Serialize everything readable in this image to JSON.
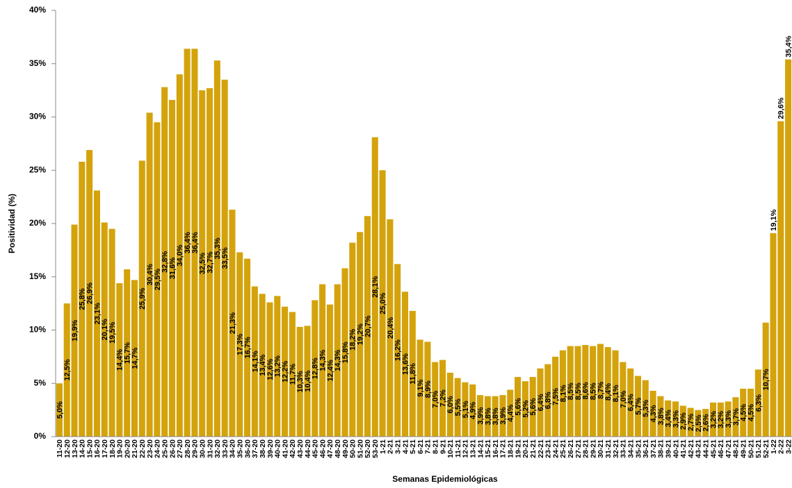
{
  "chart_data": {
    "type": "bar",
    "x_label": "Semanas Epidemiológicas",
    "y_label": "Positividad (%)",
    "color": "#d4a30c",
    "ylim": [
      0,
      40
    ],
    "yticks": [
      {
        "value": 0,
        "label": "0%"
      },
      {
        "value": 5,
        "label": "5%"
      },
      {
        "value": 10,
        "label": "10%"
      },
      {
        "value": 15,
        "label": "15%"
      },
      {
        "value": 20,
        "label": "20%"
      },
      {
        "value": 25,
        "label": "25%"
      },
      {
        "value": 30,
        "label": "30%"
      },
      {
        "value": 35,
        "label": "35%"
      },
      {
        "value": 40,
        "label": "40%"
      }
    ],
    "categories": [
      "11-20",
      "12-20",
      "13-20",
      "14-20",
      "15-20",
      "16-20",
      "17-20",
      "18-20",
      "19-20",
      "20-20",
      "21-20",
      "22-20",
      "23-20",
      "24-20",
      "25-20",
      "26-20",
      "27-20",
      "28-20",
      "29-20",
      "30-20",
      "31-20",
      "32-20",
      "33-20",
      "34-20",
      "35-20",
      "36-20",
      "37-20",
      "38-20",
      "39-20",
      "40-20",
      "41-20",
      "42-20",
      "43-20",
      "44-20",
      "45-20",
      "46-20",
      "47-20",
      "48-20",
      "49-20",
      "50-20",
      "51-20",
      "52-20",
      "53-20",
      "1-21",
      "2-21",
      "3-21",
      "4-21",
      "5-21",
      "6-21",
      "7-21",
      "8-21",
      "9-21",
      "10-21",
      "11-21",
      "12-21",
      "13-21",
      "14-21",
      "15-21",
      "16-21",
      "17-21",
      "18-21",
      "19-21",
      "20-21",
      "21-21",
      "22-21",
      "23-21",
      "24-21",
      "25-21",
      "26-21",
      "27-21",
      "28-21",
      "29-21",
      "30-21",
      "31-21",
      "32-21",
      "33-21",
      "34-21",
      "35-21",
      "36-21",
      "37-21",
      "38-21",
      "39-21",
      "40-21",
      "41-21",
      "42-21",
      "43-21",
      "44-21",
      "45-21",
      "46-21",
      "47-21",
      "48-21",
      "49-21",
      "50-21",
      "51-21",
      "52-21",
      "1-22",
      "2-22",
      "3-22"
    ],
    "values": [
      5.0,
      12.5,
      19.9,
      25.8,
      26.9,
      23.1,
      20.1,
      19.5,
      14.4,
      15.7,
      14.7,
      25.9,
      30.4,
      29.5,
      32.8,
      31.6,
      34.0,
      36.4,
      36.4,
      32.5,
      32.7,
      35.3,
      33.5,
      21.3,
      17.3,
      16.7,
      14.1,
      13.4,
      12.6,
      13.2,
      12.2,
      11.7,
      10.3,
      10.4,
      12.8,
      14.3,
      12.4,
      14.3,
      15.8,
      18.2,
      19.2,
      20.7,
      28.1,
      25.0,
      20.4,
      16.2,
      13.6,
      11.8,
      9.1,
      8.9,
      7.0,
      7.2,
      6.0,
      5.5,
      5.1,
      4.9,
      3.9,
      3.8,
      3.8,
      3.9,
      4.4,
      5.6,
      5.2,
      5.6,
      6.4,
      6.8,
      7.5,
      8.1,
      8.5,
      8.5,
      8.6,
      8.5,
      8.7,
      8.4,
      8.1,
      7.0,
      6.4,
      5.7,
      5.3,
      4.3,
      3.8,
      3.4,
      3.3,
      2.9,
      2.7,
      2.5,
      2.6,
      3.2,
      3.2,
      3.3,
      3.7,
      4.5,
      4.5,
      6.3,
      10.7,
      19.1,
      29.6,
      35.4
    ],
    "value_labels": [
      "5,0%",
      "12,5%",
      "19,9%",
      "25,8%",
      "26,9%",
      "23,1%",
      "20,1%",
      "19,5%",
      "14,4%",
      "15,7%",
      "14,7%",
      "25,9%",
      "30,4%",
      "29,5%",
      "32,8%",
      "31,6%",
      "34,0%",
      "36,4%",
      "36,4%",
      "32,5%",
      "32,7%",
      "35,3%",
      "33,5%",
      "21,3%",
      "17,3%",
      "16,7%",
      "14,1%",
      "13,4%",
      "12,6%",
      "13,2%",
      "12,2%",
      "11,7%",
      "10,3%",
      "10,4%",
      "12,8%",
      "14,3%",
      "12,4%",
      "14,3%",
      "15,8%",
      "18,2%",
      "19,2%",
      "20,7%",
      "28,1%",
      "25,0%",
      "20,4%",
      "16,2%",
      "13,6%",
      "11,8%",
      "9,1%",
      "8,9%",
      "7,0%",
      "7,2%",
      "6,0%",
      "5,5%",
      "5,1%",
      "4,9%",
      "3,9%",
      "3,8%",
      "3,8%",
      "3,9%",
      "4,4%",
      "5,6%",
      "5,2%",
      "5,6%",
      "6,4%",
      "6,8%",
      "7,5%",
      "8,1%",
      "8,5%",
      "8,5%",
      "8,6%",
      "8,5%",
      "8,7%",
      "8,4%",
      "8,1%",
      "7,0%",
      "6,4%",
      "5,7%",
      "5,3%",
      "4,3%",
      "3,8%",
      "3,4%",
      "3,3%",
      "2,9%",
      "2,7%",
      "2,5%",
      "2,6%",
      "3,2%",
      "3,2%",
      "3,3%",
      "3,7%",
      "4,5%",
      "4,5%",
      "6,3%",
      "10,7%",
      "19,1%",
      "29,6%",
      "35,4%"
    ]
  }
}
